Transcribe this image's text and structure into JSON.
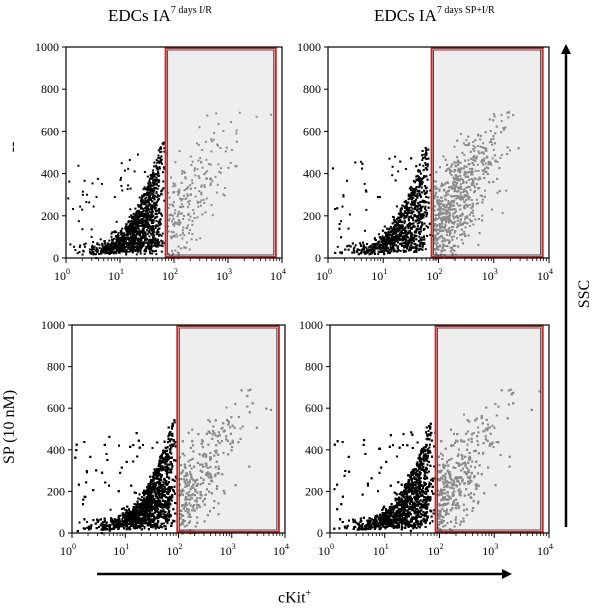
{
  "figure": {
    "column_titles": [
      {
        "main": "EDCs IA",
        "sup": "7 days I/R"
      },
      {
        "main": "EDCs IA",
        "sup": "7 days SP+I/R"
      }
    ],
    "row_labels": [
      "--",
      "SP (10 nM)"
    ],
    "x_caption": "cKit",
    "x_caption_sup": "+",
    "y_caption": "SSC",
    "colors": {
      "axes": "#000000",
      "gate_border": "#c62828",
      "gate_fill": "#eeeeee",
      "events_low": "#000000",
      "events_high": "#8a8a8a"
    }
  },
  "chart_data": [
    {
      "type": "scatter",
      "panel": "top-left",
      "title": "",
      "xlabel": "",
      "ylabel": "",
      "x_scale": "log",
      "xlim": [
        1,
        10000
      ],
      "y_scale": "linear",
      "ylim": [
        0,
        1000
      ],
      "x_ticks": [
        1,
        10,
        100,
        1000,
        10000
      ],
      "y_ticks": [
        0,
        200,
        400,
        600,
        800,
        1000
      ],
      "gate": {
        "x": [
          70,
          8000
        ],
        "y": [
          0,
          1000
        ]
      },
      "events_approx": {
        "count": 1500,
        "fraction_in_gate": 0.15,
        "y_max": 700
      }
    },
    {
      "type": "scatter",
      "panel": "top-right",
      "title": "",
      "xlabel": "",
      "ylabel": "",
      "x_scale": "log",
      "xlim": [
        1,
        10000
      ],
      "y_scale": "linear",
      "ylim": [
        0,
        1000
      ],
      "x_ticks": [
        1,
        10,
        100,
        1000,
        10000
      ],
      "y_ticks": [
        0,
        200,
        400,
        600,
        800,
        1000
      ],
      "gate": {
        "x": [
          75,
          8000
        ],
        "y": [
          0,
          1000
        ]
      },
      "events_approx": {
        "count": 2600,
        "fraction_in_gate": 0.45,
        "y_max": 700
      }
    },
    {
      "type": "scatter",
      "panel": "bottom-left",
      "title": "",
      "xlabel": "",
      "ylabel": "",
      "x_scale": "log",
      "xlim": [
        1,
        10000
      ],
      "y_scale": "linear",
      "ylim": [
        0,
        1000
      ],
      "x_ticks": [
        1,
        10,
        100,
        1000,
        10000
      ],
      "y_ticks": [
        0,
        200,
        400,
        600,
        800,
        1000
      ],
      "gate": {
        "x": [
          95,
          8000
        ],
        "y": [
          0,
          1000
        ]
      },
      "events_approx": {
        "count": 4200,
        "fraction_in_gate": 0.22,
        "y_max": 700
      }
    },
    {
      "type": "scatter",
      "panel": "bottom-right",
      "title": "",
      "xlabel": "",
      "ylabel": "",
      "x_scale": "log",
      "xlim": [
        1,
        10000
      ],
      "y_scale": "linear",
      "ylim": [
        0,
        1000
      ],
      "x_ticks": [
        1,
        10,
        100,
        1000,
        10000
      ],
      "y_ticks": [
        0,
        200,
        400,
        600,
        800,
        1000
      ],
      "gate": {
        "x": [
          85,
          8000
        ],
        "y": [
          0,
          1000
        ]
      },
      "events_approx": {
        "count": 4200,
        "fraction_in_gate": 0.26,
        "y_max": 700
      }
    }
  ]
}
